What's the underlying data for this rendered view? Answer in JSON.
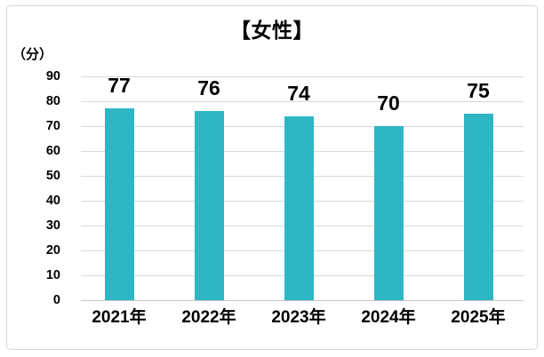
{
  "chart_data": {
    "type": "bar",
    "title": "【女性】",
    "y_unit_label": "（分）",
    "categories": [
      "2021年",
      "2022年",
      "2023年",
      "2024年",
      "2025年"
    ],
    "values": [
      77,
      76,
      74,
      70,
      75
    ],
    "ylim": [
      0,
      90
    ],
    "ytick_step": 10,
    "yticks": [
      0,
      10,
      20,
      30,
      40,
      50,
      60,
      70,
      80,
      90
    ],
    "bar_color": "#2eb6c5",
    "gridline_color": "#d9d9d9",
    "axis_line_color": "#c6c6c6",
    "text_color": "#000000",
    "grid": "horizontal",
    "legend_position": "none",
    "data_label_position": "outside-end-above-bars"
  },
  "frame": {
    "border_color": "#d6d6d6"
  }
}
